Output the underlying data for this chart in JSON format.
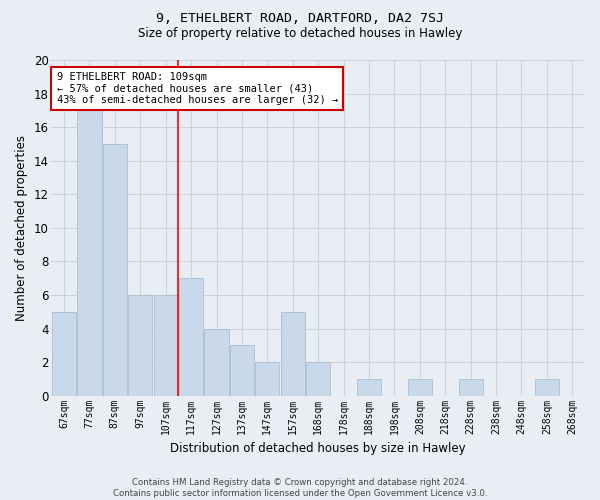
{
  "title": "9, ETHELBERT ROAD, DARTFORD, DA2 7SJ",
  "subtitle": "Size of property relative to detached houses in Hawley",
  "xlabel": "Distribution of detached houses by size in Hawley",
  "ylabel": "Number of detached properties",
  "bar_labels": [
    "67sqm",
    "77sqm",
    "87sqm",
    "97sqm",
    "107sqm",
    "117sqm",
    "127sqm",
    "137sqm",
    "147sqm",
    "157sqm",
    "168sqm",
    "178sqm",
    "188sqm",
    "198sqm",
    "208sqm",
    "218sqm",
    "228sqm",
    "238sqm",
    "248sqm",
    "258sqm",
    "268sqm"
  ],
  "bar_values": [
    5,
    17,
    15,
    6,
    6,
    7,
    4,
    3,
    2,
    5,
    2,
    0,
    1,
    0,
    1,
    0,
    1,
    0,
    0,
    1,
    0
  ],
  "bar_color": "#c9d9ea",
  "bar_edge_color": "#aabfcf",
  "grid_color": "#c8d4e0",
  "background_color": "#e8eef4",
  "red_line_x": 4.5,
  "ylim": [
    0,
    20
  ],
  "yticks": [
    0,
    2,
    4,
    6,
    8,
    10,
    12,
    14,
    16,
    18,
    20
  ],
  "annotation_text": "9 ETHELBERT ROAD: 109sqm\n← 57% of detached houses are smaller (43)\n43% of semi-detached houses are larger (32) →",
  "annotation_box_color": "#ffffff",
  "annotation_box_edge_color": "#cc0000",
  "footer_text": "Contains HM Land Registry data © Crown copyright and database right 2024.\nContains public sector information licensed under the Open Government Licence v3.0."
}
